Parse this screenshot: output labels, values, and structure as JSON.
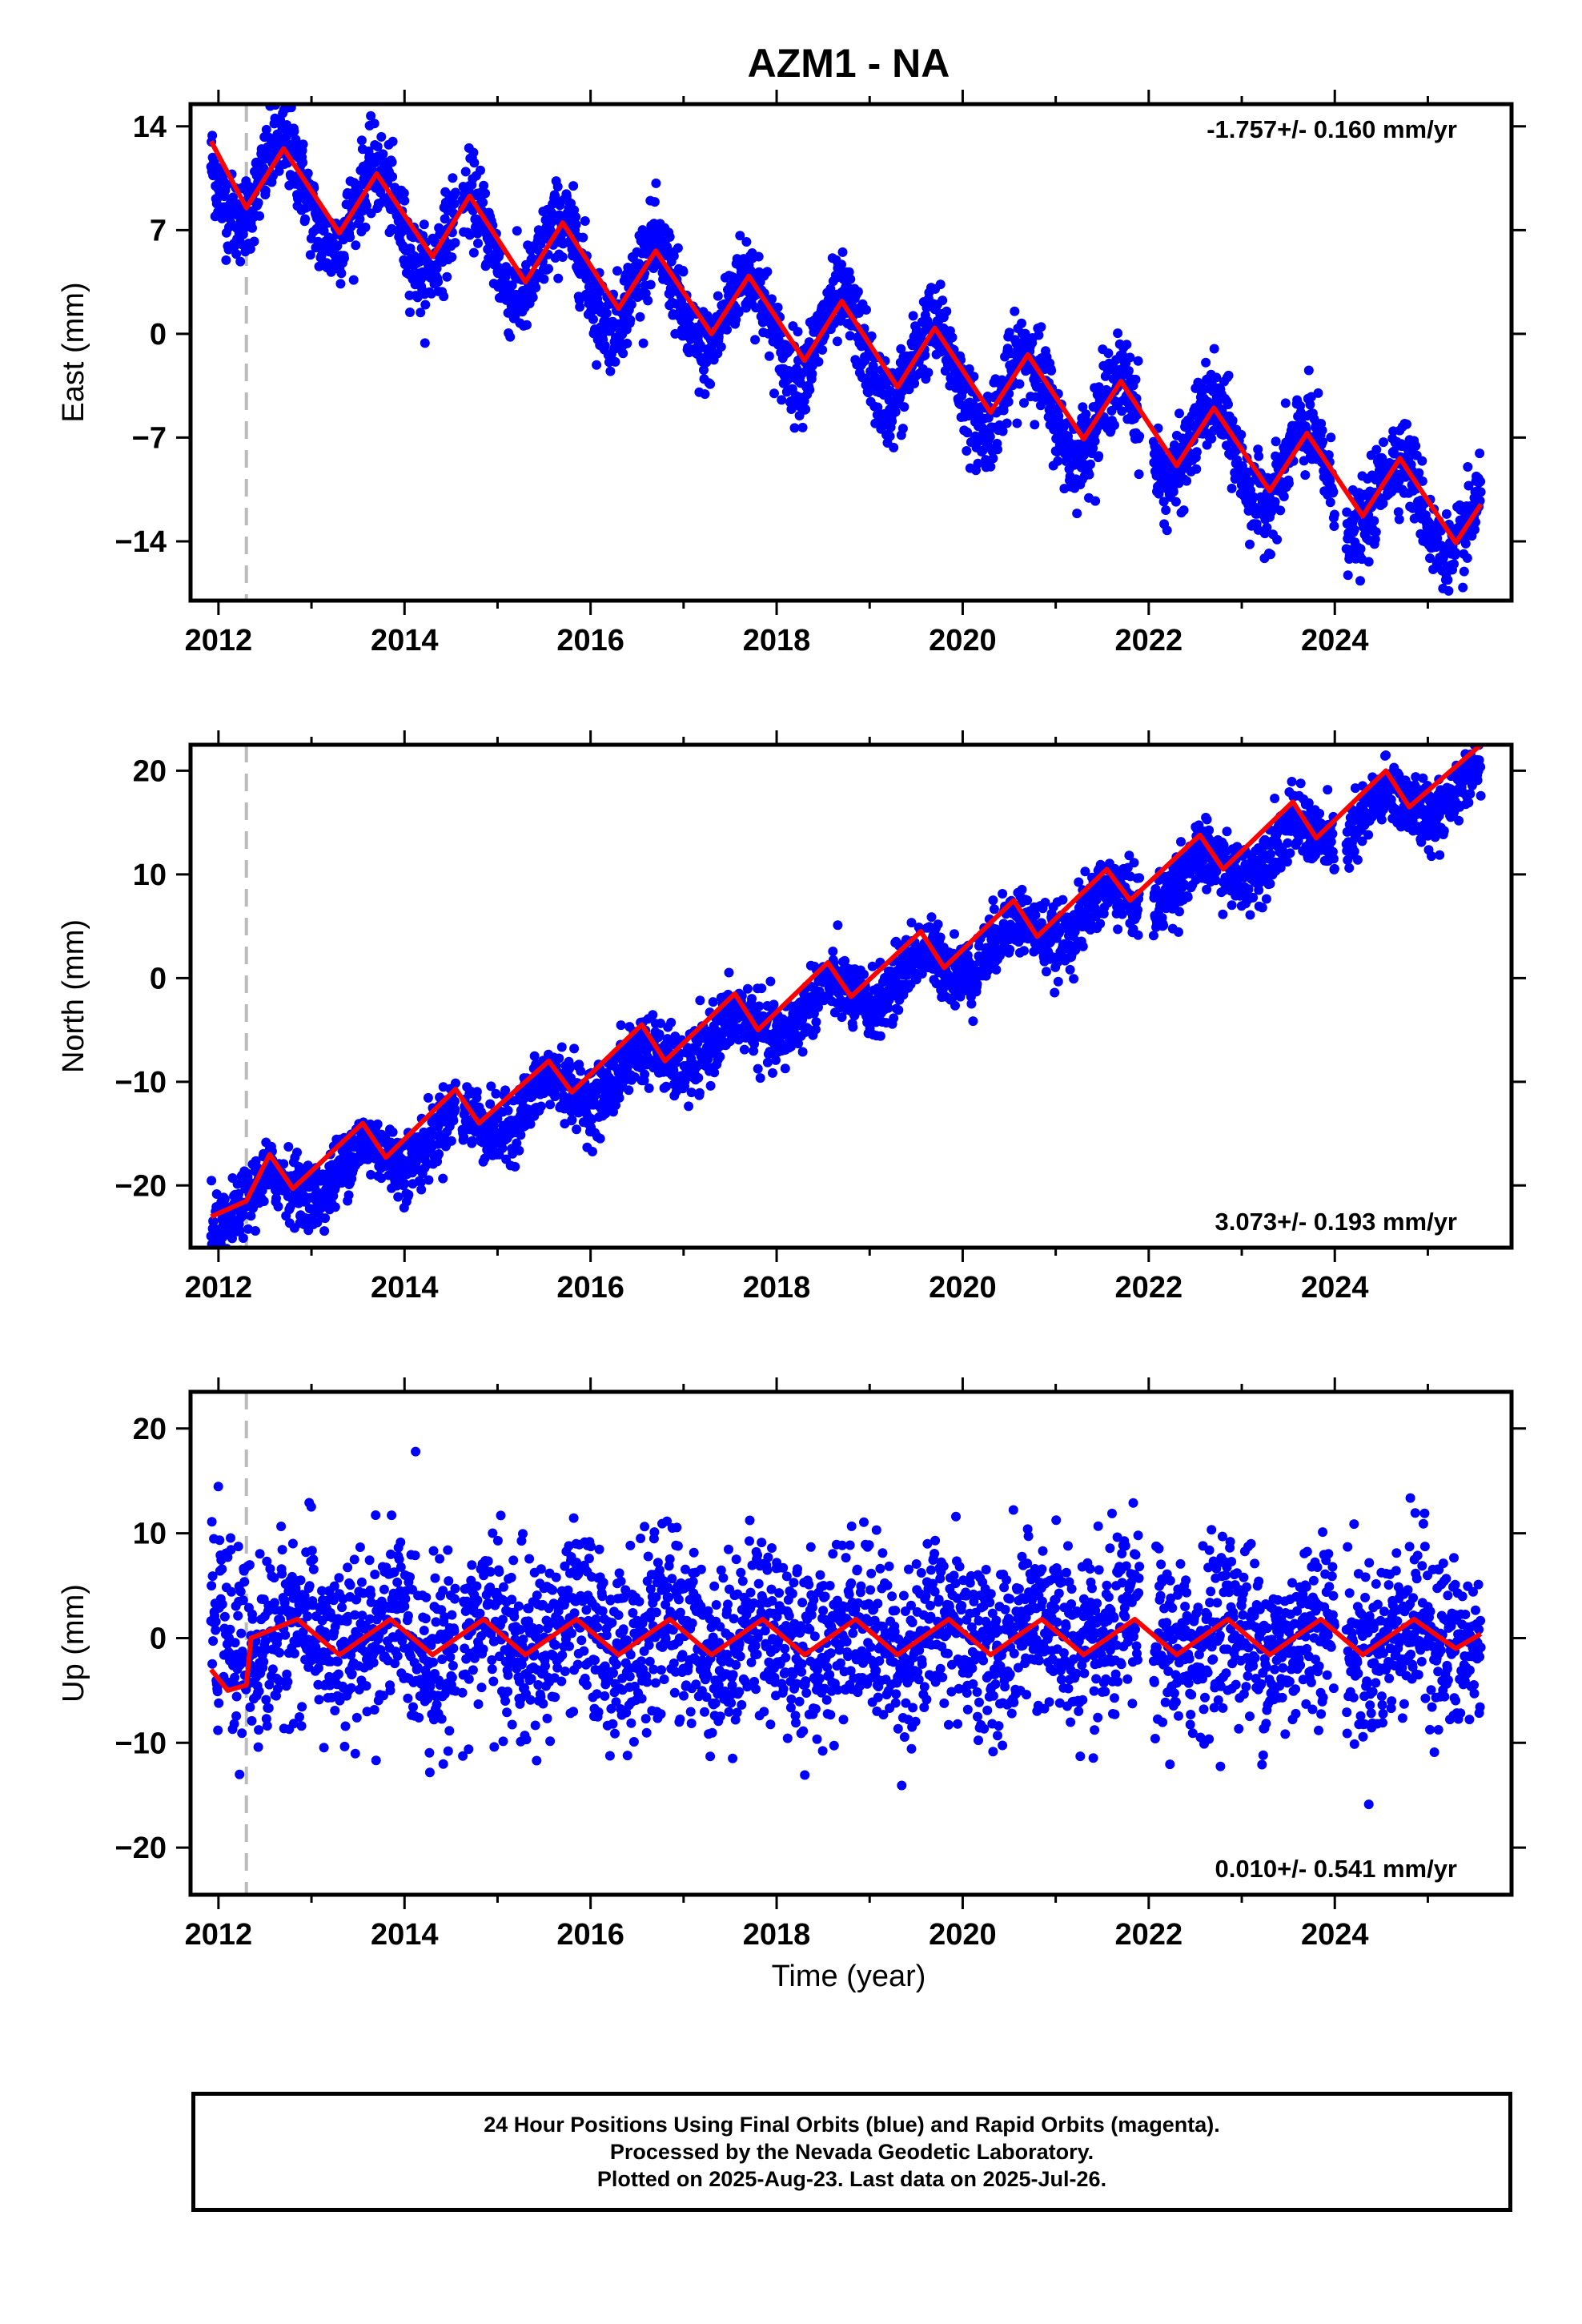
{
  "title": "AZM1 - NA",
  "xlabel": "Time (year)",
  "colors": {
    "final_orbits": "#0000ff",
    "model": "#ff0000",
    "event_line": "#bbbbbb",
    "axes": "#000000"
  },
  "caption": {
    "line1": "24 Hour Positions Using Final Orbits (blue) and Rapid Orbits (magenta).",
    "line2": "Processed by the Nevada Geodetic Laboratory.",
    "line3": "Plotted on 2025-Aug-23. Last data on 2025-Jul-26."
  },
  "chart_data": [
    {
      "type": "scatter",
      "name": "east",
      "ylabel": "East (mm)",
      "xlim": [
        2011.7,
        2025.9
      ],
      "ylim": [
        -18,
        15.5
      ],
      "xticks": [
        2012,
        2014,
        2016,
        2018,
        2020,
        2022,
        2024
      ],
      "yticks": [
        14,
        7,
        0,
        -7,
        -14
      ],
      "ytick_labels": [
        "14",
        "7",
        "0",
        "−7",
        "−14"
      ],
      "rate_text": "-1.757+/- 0.160 mm/yr",
      "rate_position": "top-right",
      "event_line_x": 2012.3,
      "data_start": 2011.92,
      "data_end": 2025.57,
      "trend": {
        "offset_at_2012": 11.0,
        "rate_mm_per_yr": -1.757
      },
      "seasonal_amplitude": 3.0,
      "seasonal_peak_phase": 0.7,
      "scatter_noise_mm": 1.4,
      "model_points": [
        [
          2011.92,
          13.0
        ],
        [
          2012.3,
          8.5
        ],
        [
          2012.7,
          12.5
        ],
        [
          2013.3,
          6.8
        ],
        [
          2013.7,
          10.8
        ],
        [
          2014.3,
          5.2
        ],
        [
          2014.7,
          9.3
        ],
        [
          2015.3,
          3.5
        ],
        [
          2015.7,
          7.5
        ],
        [
          2016.3,
          1.7
        ],
        [
          2016.7,
          5.6
        ],
        [
          2017.3,
          0.0
        ],
        [
          2017.7,
          3.9
        ],
        [
          2018.3,
          -1.8
        ],
        [
          2018.7,
          2.2
        ],
        [
          2019.3,
          -3.6
        ],
        [
          2019.7,
          0.4
        ],
        [
          2020.3,
          -5.3
        ],
        [
          2020.7,
          -1.4
        ],
        [
          2021.3,
          -7.1
        ],
        [
          2021.7,
          -3.2
        ],
        [
          2022.3,
          -8.9
        ],
        [
          2022.7,
          -5.0
        ],
        [
          2023.3,
          -10.6
        ],
        [
          2023.7,
          -6.7
        ],
        [
          2024.3,
          -12.3
        ],
        [
          2024.7,
          -8.4
        ],
        [
          2025.3,
          -14.1
        ],
        [
          2025.57,
          -11.5
        ]
      ]
    },
    {
      "type": "scatter",
      "name": "north",
      "ylabel": "North (mm)",
      "xlim": [
        2011.7,
        2025.9
      ],
      "ylim": [
        -26,
        22.5
      ],
      "xticks": [
        2012,
        2014,
        2016,
        2018,
        2020,
        2022,
        2024
      ],
      "yticks": [
        20,
        10,
        0,
        -10,
        -20
      ],
      "ytick_labels": [
        "20",
        "10",
        "0",
        "−10",
        "−20"
      ],
      "rate_text": "3.073+/- 0.193 mm/yr",
      "rate_position": "bottom-right",
      "event_line_x": 2012.3,
      "data_start": 2011.92,
      "data_end": 2025.57,
      "trend": {
        "offset_at_2012": -22.5,
        "rate_mm_per_yr": 3.073
      },
      "seasonal_amplitude": 1.8,
      "seasonal_peak_phase": 0.55,
      "scatter_noise_mm": 1.6,
      "model_points": [
        [
          2011.92,
          -23.0
        ],
        [
          2012.3,
          -21.5
        ],
        [
          2012.55,
          -17.0
        ],
        [
          2012.8,
          -20.3
        ],
        [
          2013.55,
          -14.0
        ],
        [
          2013.8,
          -17.3
        ],
        [
          2014.55,
          -10.7
        ],
        [
          2014.8,
          -14.0
        ],
        [
          2015.55,
          -8.0
        ],
        [
          2015.8,
          -11.0
        ],
        [
          2016.55,
          -4.5
        ],
        [
          2016.8,
          -8.0
        ],
        [
          2017.55,
          -1.5
        ],
        [
          2017.8,
          -5.0
        ],
        [
          2018.55,
          1.5
        ],
        [
          2018.8,
          -1.8
        ],
        [
          2019.55,
          4.5
        ],
        [
          2019.8,
          1.0
        ],
        [
          2020.55,
          7.5
        ],
        [
          2020.8,
          4.0
        ],
        [
          2021.55,
          10.5
        ],
        [
          2021.8,
          7.5
        ],
        [
          2022.55,
          13.8
        ],
        [
          2022.8,
          10.5
        ],
        [
          2023.55,
          17.0
        ],
        [
          2023.8,
          13.5
        ],
        [
          2024.55,
          20.0
        ],
        [
          2024.8,
          16.5
        ],
        [
          2025.57,
          22.5
        ]
      ]
    },
    {
      "type": "scatter",
      "name": "up",
      "ylabel": "Up (mm)",
      "xlim": [
        2011.7,
        2025.9
      ],
      "ylim": [
        -24.5,
        23.5
      ],
      "xticks": [
        2012,
        2014,
        2016,
        2018,
        2020,
        2022,
        2024
      ],
      "yticks": [
        20,
        10,
        0,
        -10,
        -20
      ],
      "ytick_labels": [
        "20",
        "10",
        "0",
        "−10",
        "−20"
      ],
      "rate_text": "0.010+/- 0.541 mm/yr",
      "rate_position": "bottom-right",
      "event_line_x": 2012.3,
      "data_start": 2011.92,
      "data_end": 2025.57,
      "trend": {
        "offset_at_2012": 0.0,
        "rate_mm_per_yr": 0.01
      },
      "seasonal_amplitude": 1.8,
      "seasonal_peak_phase": 0.85,
      "scatter_noise_mm": 4.2,
      "model_points": [
        [
          2011.92,
          -3.0
        ],
        [
          2012.1,
          -5.0
        ],
        [
          2012.3,
          -4.5
        ],
        [
          2012.35,
          0.0
        ],
        [
          2012.85,
          1.8
        ],
        [
          2013.3,
          -1.6
        ],
        [
          2013.85,
          1.8
        ],
        [
          2014.3,
          -1.6
        ],
        [
          2014.85,
          1.8
        ],
        [
          2015.3,
          -1.6
        ],
        [
          2015.85,
          1.8
        ],
        [
          2016.3,
          -1.6
        ],
        [
          2016.85,
          1.8
        ],
        [
          2017.3,
          -1.6
        ],
        [
          2017.85,
          1.8
        ],
        [
          2018.3,
          -1.6
        ],
        [
          2018.85,
          1.8
        ],
        [
          2019.3,
          -1.6
        ],
        [
          2019.85,
          1.8
        ],
        [
          2020.3,
          -1.6
        ],
        [
          2020.85,
          1.8
        ],
        [
          2021.3,
          -1.6
        ],
        [
          2021.85,
          1.8
        ],
        [
          2022.3,
          -1.6
        ],
        [
          2022.85,
          1.8
        ],
        [
          2023.3,
          -1.6
        ],
        [
          2023.85,
          1.8
        ],
        [
          2024.3,
          -1.6
        ],
        [
          2024.85,
          1.8
        ],
        [
          2025.3,
          -1.0
        ],
        [
          2025.57,
          0.4
        ]
      ]
    }
  ]
}
